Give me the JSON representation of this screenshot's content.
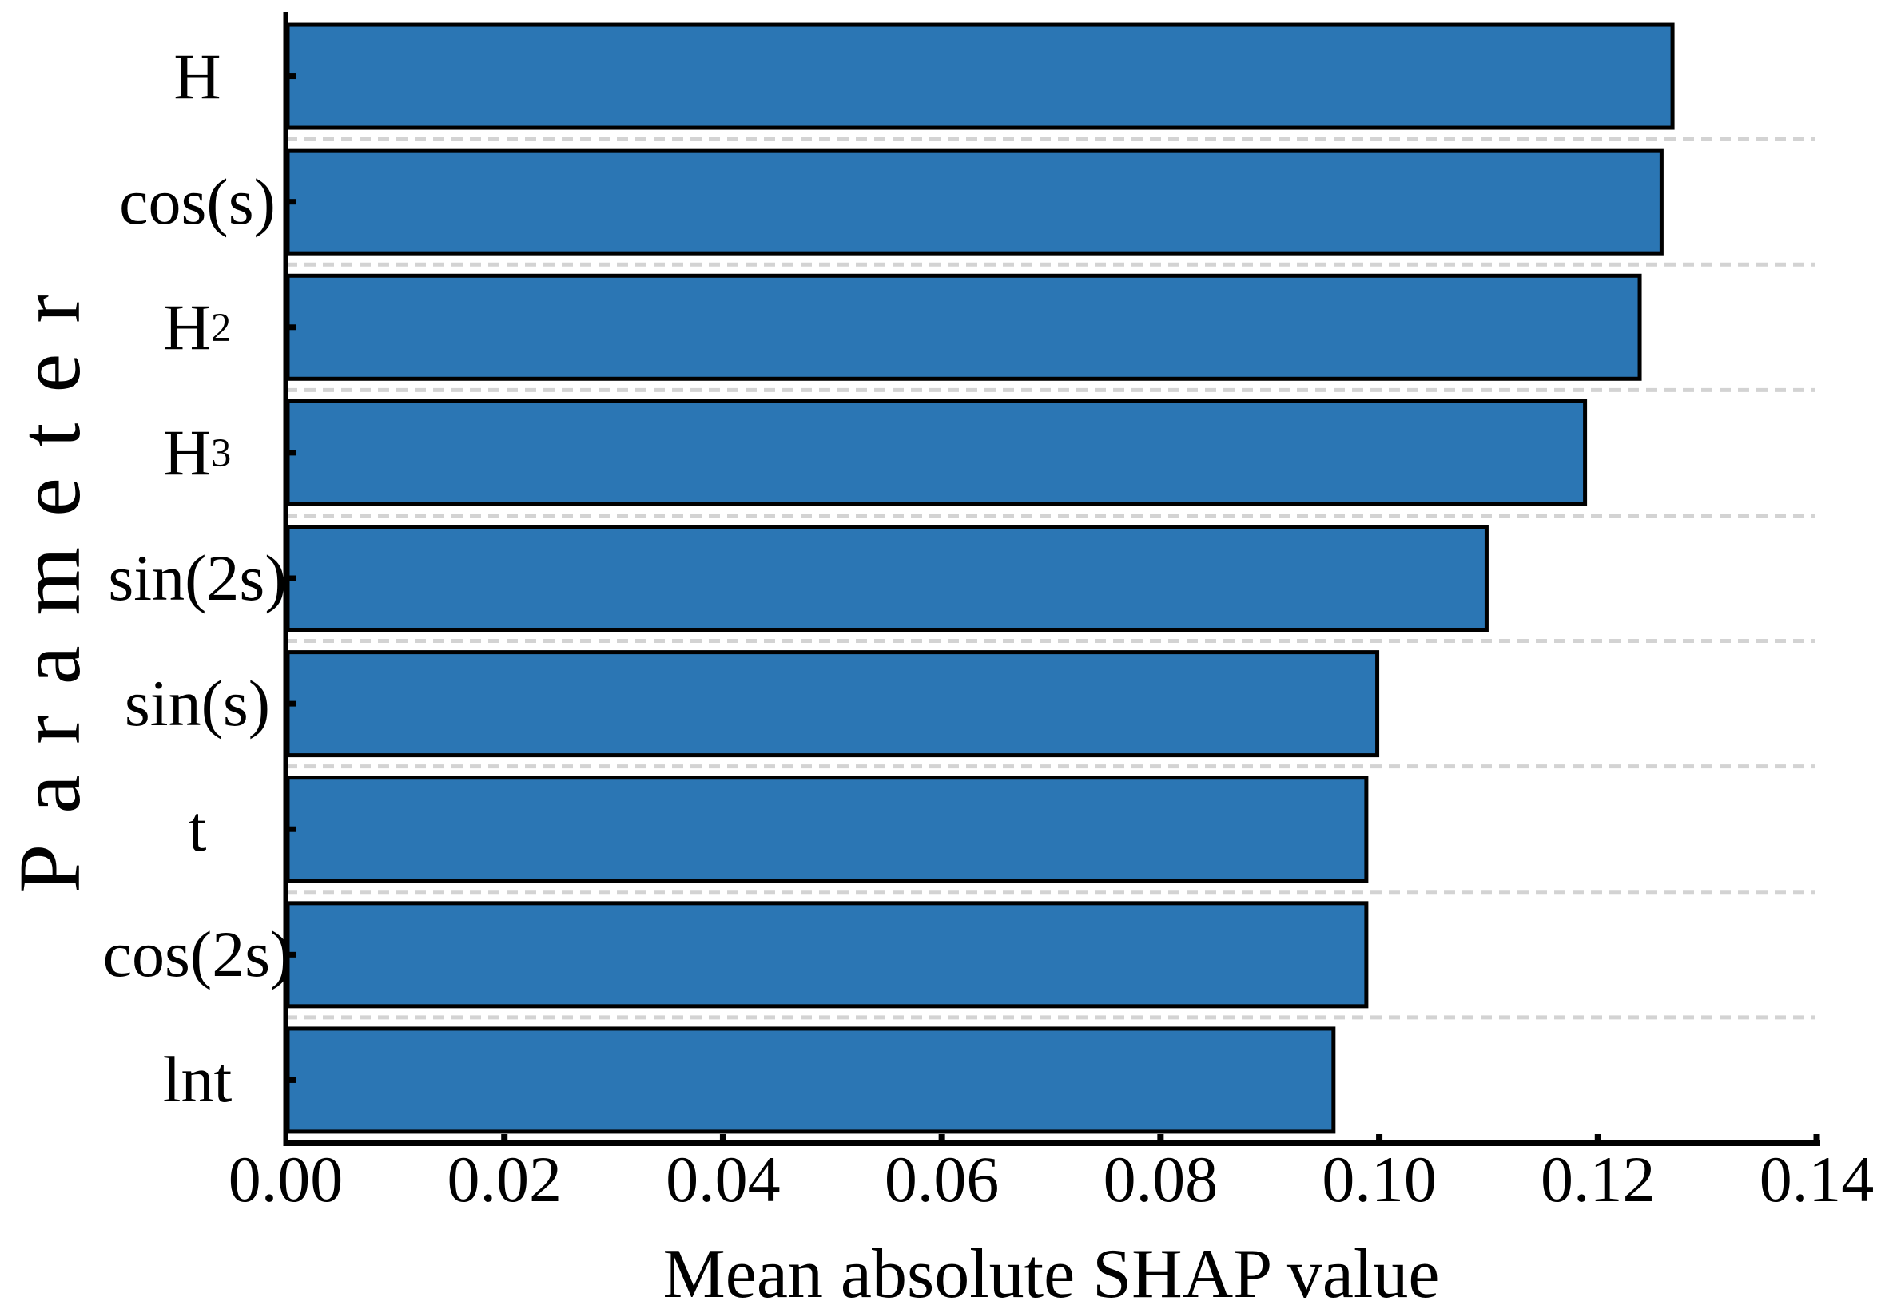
{
  "figure": {
    "background": "#ffffff"
  },
  "chart_data": {
    "type": "bar",
    "orientation": "horizontal",
    "title": "",
    "xlabel": "Mean absolute SHAP value",
    "ylabel": "Parameter",
    "categories": [
      "H",
      "cos(s)",
      "H²",
      "H³",
      "sin(2s)",
      "sin(s)",
      "t",
      "cos(2s)",
      "lnt"
    ],
    "values": [
      0.127,
      0.126,
      0.124,
      0.119,
      0.11,
      0.1,
      0.099,
      0.099,
      0.096
    ],
    "xlim": [
      0,
      0.14
    ],
    "x_ticks": [
      0,
      0.02,
      0.04,
      0.06,
      0.08,
      0.1,
      0.12,
      0.14
    ],
    "x_tick_labels": [
      "0.00",
      "0.02",
      "0.04",
      "0.06",
      "0.08",
      "0.10",
      "0.12",
      "0.14"
    ],
    "bar_color": "#2b76b4",
    "bar_edge_color": "#000000",
    "axis_color": "#000000",
    "grid": {
      "visible": true,
      "style": "dashed",
      "color": "#d3d3d3",
      "position": "between-categories"
    },
    "legend": "none"
  }
}
